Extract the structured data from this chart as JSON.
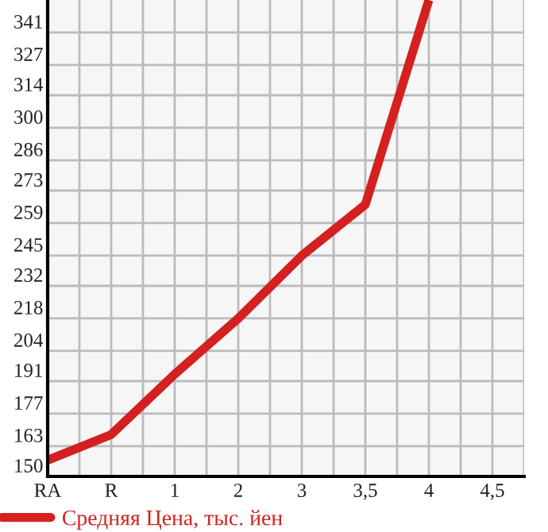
{
  "chart_data": {
    "type": "line",
    "categories": [
      "RA",
      "R",
      "1",
      "2",
      "3",
      "3,5",
      "4",
      "4,5"
    ],
    "series": [
      {
        "name": "Средняя Цена, тыс. йен",
        "color": "#d42020",
        "values": [
          157,
          168,
          194,
          218,
          245,
          267,
          355,
          null
        ]
      }
    ],
    "ylim": [
      150,
      355
    ],
    "yticks": [
      150,
      163,
      177,
      191,
      204,
      218,
      232,
      245,
      259,
      273,
      286,
      300,
      314,
      327,
      341
    ],
    "grid": true,
    "legend": "bottom left",
    "marker": "none",
    "line_style": "solid"
  }
}
